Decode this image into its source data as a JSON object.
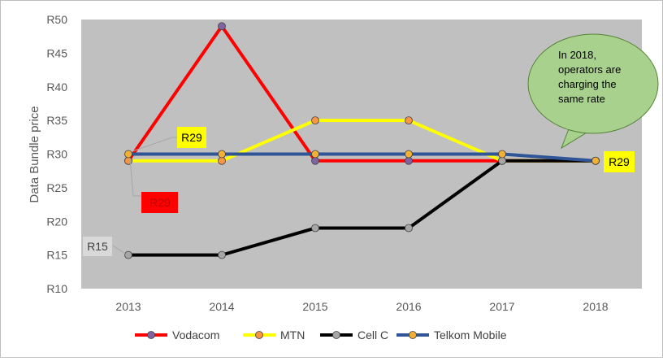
{
  "chart_data": {
    "type": "line",
    "title": "",
    "xlabel": "",
    "ylabel": "Data Bundle price",
    "categories": [
      "2013",
      "2014",
      "2015",
      "2016",
      "2017",
      "2018"
    ],
    "ylim": [
      10,
      50
    ],
    "yticks": [
      10,
      15,
      20,
      25,
      30,
      35,
      40,
      45,
      50
    ],
    "ytick_prefix": "R",
    "grid": false,
    "plot_background": "#c0c0c0",
    "legend_position": "bottom",
    "series": [
      {
        "name": "Vodacom",
        "values": [
          29,
          49,
          29,
          29,
          29,
          29
        ],
        "color": "#ff0000",
        "marker_color": "#8064a2"
      },
      {
        "name": "MTN",
        "values": [
          29,
          29,
          35,
          35,
          29,
          29
        ],
        "color": "#ffff00",
        "marker_color": "#f79646"
      },
      {
        "name": "Cell C",
        "values": [
          15,
          15,
          19,
          19,
          29,
          29
        ],
        "color": "#000000",
        "marker_color": "#a6a6a6"
      },
      {
        "name": "Telkom  Mobile",
        "values": [
          30,
          30,
          30,
          30,
          30,
          29
        ],
        "color": "#2f5597",
        "marker_color": "#f2b134"
      }
    ],
    "annotations": [
      {
        "text": "R29",
        "style": "yellow-box"
      },
      {
        "text": "R29",
        "style": "red-box"
      },
      {
        "text": "R15",
        "style": "gray-box"
      },
      {
        "text": "R29",
        "style": "yellow-box"
      },
      {
        "text": "In 2018, operators are charging the same rate",
        "lines": [
          "In 2018,",
          "operators are",
          "charging  the",
          "same rate"
        ],
        "style": "green-callout"
      }
    ]
  }
}
